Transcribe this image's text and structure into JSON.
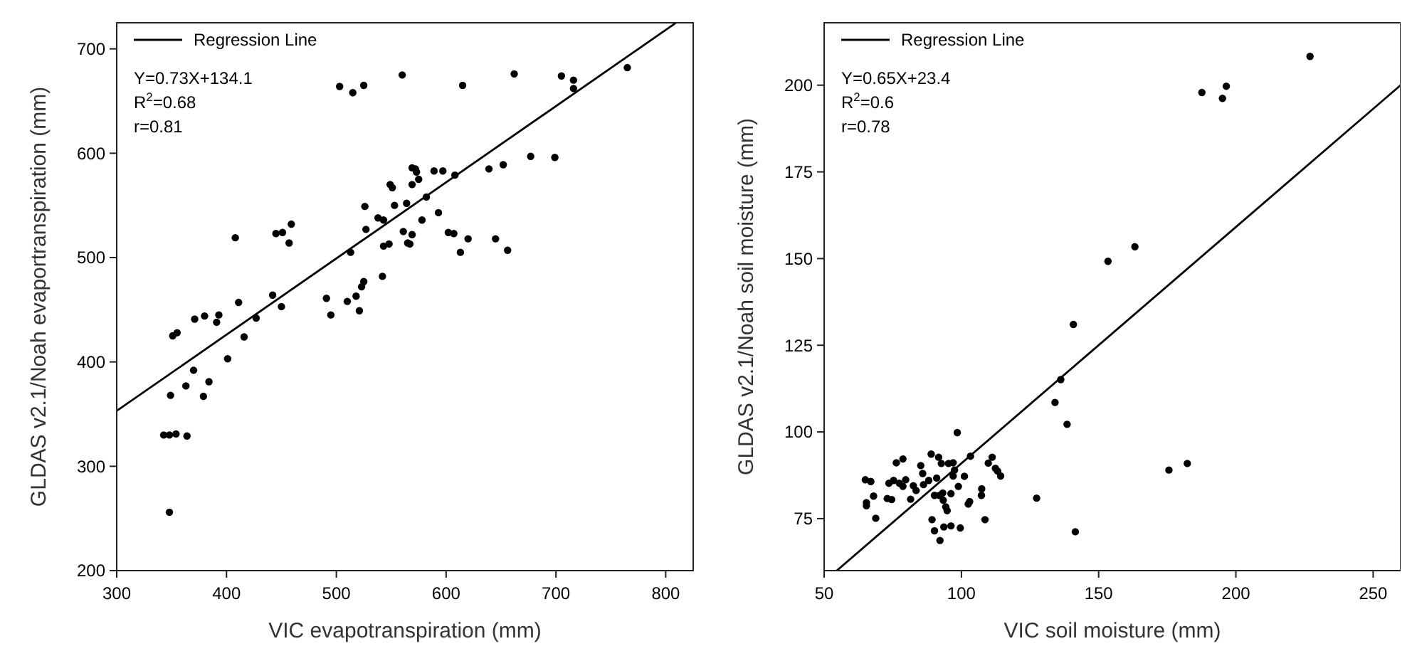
{
  "chart_data": [
    {
      "type": "scatter",
      "xlabel": "VIC evapotranspiration (mm)",
      "ylabel": "GLDAS v2.1/Noah evaportranspiration (mm)",
      "xlim": [
        300,
        825
      ],
      "ylim": [
        200,
        725
      ],
      "xticks": [
        300,
        400,
        500,
        600,
        700,
        800
      ],
      "yticks": [
        200,
        300,
        400,
        500,
        600,
        700
      ],
      "legend": "top left",
      "marker": "circle",
      "grid": false,
      "annotations": [
        "Y=0.73X+134.1",
        "R$^{2}$=0.68",
        "r=0.81"
      ],
      "series": [
        {
          "color": "#000000",
          "x": [
            342.8,
            348,
            354,
            364,
            348,
            349,
            363,
            370,
            379,
            384,
            401,
            351,
            355,
            371,
            380,
            391,
            393,
            411,
            416,
            427,
            442,
            450,
            445,
            451,
            457,
            459,
            408,
            491,
            495,
            510,
            518,
            521,
            523,
            525,
            513,
            526,
            527,
            542,
            543,
            548,
            538,
            543,
            549,
            551,
            553,
            561,
            564,
            565,
            567,
            569,
            569,
            569,
            572,
            575,
            573,
            578,
            582,
            589,
            597,
            593,
            602,
            607,
            608,
            613,
            620,
            639,
            652,
            645,
            656,
            677,
            699,
            503,
            515,
            525,
            560,
            615,
            662,
            705,
            716,
            716,
            765
          ],
          "values": [
            330,
            330,
            331,
            329,
            256,
            368,
            377,
            392,
            367,
            381,
            403,
            425,
            428,
            441,
            444,
            438,
            445,
            457,
            424,
            442,
            464,
            453,
            523,
            524,
            514,
            532,
            519,
            461,
            445,
            458,
            463,
            449,
            472,
            477,
            505,
            549,
            527,
            482,
            511,
            513,
            538,
            536,
            570,
            567,
            550,
            525,
            552,
            514,
            513,
            522,
            570,
            586,
            585,
            575,
            582,
            536,
            558,
            583,
            583,
            543,
            524,
            523,
            579,
            505,
            518,
            585,
            589,
            518,
            507,
            597,
            596,
            664,
            658,
            665,
            675,
            665,
            676,
            674,
            670,
            662,
            682
          ]
        },
        {
          "type": "line",
          "name": "Regression Line",
          "color": "#000000",
          "marker": "none",
          "line_style": "solid",
          "x": [
            300,
            809
          ],
          "values": [
            353.1,
            724.7
          ]
        }
      ]
    },
    {
      "type": "scatter",
      "xlabel": "VIC soil moisture (mm)",
      "ylabel": "GLDAS v2.1/Noah soil moisture (mm)",
      "xlim": [
        50,
        260
      ],
      "ylim": [
        60,
        218
      ],
      "xticks": [
        50,
        100,
        150,
        200,
        250
      ],
      "yticks": [
        75,
        100,
        125,
        150,
        175,
        200
      ],
      "legend": "top left",
      "marker": "circle",
      "grid": false,
      "annotations": [
        "Y=0.65X+23.4",
        "R$^{2}$=0.6",
        "r=0.78"
      ],
      "series": [
        {
          "color": "#000000",
          "x": [
            227,
            187.6,
            195.1,
            196.5,
            163.2,
            153.4,
            140.8,
            136.2,
            134.1,
            138.5,
            175.6,
            182.3,
            141.5,
            127.4,
            98.5,
            65,
            67,
            65.4,
            65.4,
            68,
            68.8,
            73,
            74.6,
            73.6,
            75.3,
            76.3,
            78.7,
            77.4,
            78.7,
            79.7,
            81.5,
            82.5,
            83.5,
            85.2,
            85.9,
            86.2,
            88.1,
            89,
            89.3,
            90.2,
            91,
            91.7,
            92,
            90.2,
            92.7,
            93.2,
            93.4,
            94.3,
            94.8,
            92.2,
            93.6,
            96.2,
            95.3,
            96.2,
            97,
            97,
            97.5,
            98.9,
            99.6,
            101.1,
            102.5,
            103,
            103.3,
            107.3,
            107.4,
            108.6,
            109.8,
            111.2,
            112.4,
            113.2,
            114.3
          ],
          "values": [
            208.3,
            197.9,
            196.2,
            199.7,
            153.4,
            149.2,
            131,
            115.1,
            108.5,
            102.2,
            89,
            90.9,
            71.2,
            80.9,
            99.8,
            86.2,
            85.7,
            79.6,
            78.7,
            81.5,
            75.1,
            80.8,
            80.5,
            85.2,
            86,
            91.1,
            92.2,
            85.2,
            84.3,
            86.2,
            80.6,
            84.5,
            83.1,
            90.3,
            88,
            84.8,
            86,
            93.6,
            74.7,
            71.5,
            86.7,
            92.7,
            81.7,
            81.7,
            90.9,
            82.4,
            80.3,
            78.4,
            77.3,
            68.7,
            72.6,
            72.9,
            90.9,
            82.2,
            91.1,
            87.3,
            89,
            84.3,
            72.3,
            87.2,
            79.2,
            79.9,
            93,
            81.7,
            83.6,
            74.7,
            91,
            92.7,
            89.5,
            88.7,
            87.3
          ]
        },
        {
          "type": "line",
          "name": "Regression Line",
          "color": "#000000",
          "marker": "none",
          "line_style": "solid",
          "x": [
            54.6,
            260
          ],
          "values": [
            60,
            200
          ]
        }
      ]
    }
  ]
}
